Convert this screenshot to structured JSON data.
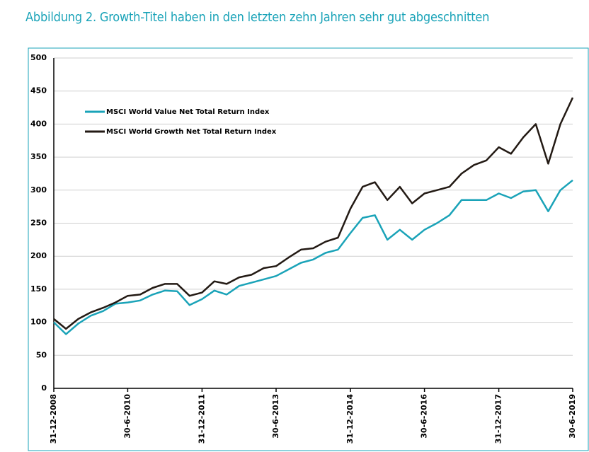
{
  "chart_data": {
    "type": "line",
    "title": "Abbildung 2. Growth-Titel haben in den letzten zehn Jahren sehr gut abgeschnitten",
    "x": [
      "31-12-2008",
      "31-3-2009",
      "30-6-2009",
      "30-9-2009",
      "31-12-2009",
      "31-3-2010",
      "30-6-2010",
      "30-9-2010",
      "31-12-2010",
      "31-3-2011",
      "30-6-2011",
      "30-9-2011",
      "31-12-2011",
      "31-3-2012",
      "30-6-2012",
      "30-9-2012",
      "31-12-2012",
      "31-3-2013",
      "30-6-2013",
      "30-9-2013",
      "31-12-2013",
      "31-3-2014",
      "30-6-2014",
      "30-9-2014",
      "31-12-2014",
      "31-3-2015",
      "30-6-2015",
      "30-9-2015",
      "31-12-2015",
      "31-3-2016",
      "30-6-2016",
      "30-9-2016",
      "31-12-2016",
      "31-3-2017",
      "30-6-2017",
      "30-9-2017",
      "31-12-2017",
      "31-3-2018",
      "30-6-2018",
      "30-9-2018",
      "31-12-2018",
      "31-3-2019",
      "30-6-2019"
    ],
    "series": [
      {
        "name": "MSCI World Value Net Total Return Index",
        "color": "#1aa3b8",
        "values": [
          100,
          82,
          98,
          110,
          117,
          128,
          130,
          133,
          142,
          148,
          147,
          126,
          135,
          148,
          142,
          155,
          160,
          165,
          170,
          180,
          190,
          195,
          205,
          210,
          235,
          258,
          262,
          225,
          240,
          225,
          240,
          250,
          262,
          285,
          285,
          285,
          295,
          288,
          298,
          300,
          268,
          300,
          315
        ]
      },
      {
        "name": "MSCI World Growth Net Total Return Index",
        "color": "#231a14",
        "values": [
          105,
          90,
          105,
          115,
          122,
          130,
          140,
          142,
          152,
          158,
          158,
          140,
          145,
          162,
          158,
          168,
          172,
          182,
          185,
          198,
          210,
          212,
          222,
          228,
          272,
          305,
          312,
          285,
          305,
          280,
          295,
          300,
          305,
          325,
          338,
          345,
          365,
          355,
          380,
          400,
          340,
          400,
          440
        ]
      }
    ],
    "xlim": [
      "31-12-2008",
      "30-6-2019"
    ],
    "xticks": [
      "31-12-2008",
      "30-6-2010",
      "31-12-2011",
      "30-6-2013",
      "31-12-2014",
      "30-6-2016",
      "31-12-2017",
      "30-6-2019"
    ],
    "ylim": [
      0,
      500
    ],
    "yticks": [
      0,
      50,
      100,
      150,
      200,
      250,
      300,
      350,
      400,
      450,
      500
    ],
    "grid": true
  }
}
